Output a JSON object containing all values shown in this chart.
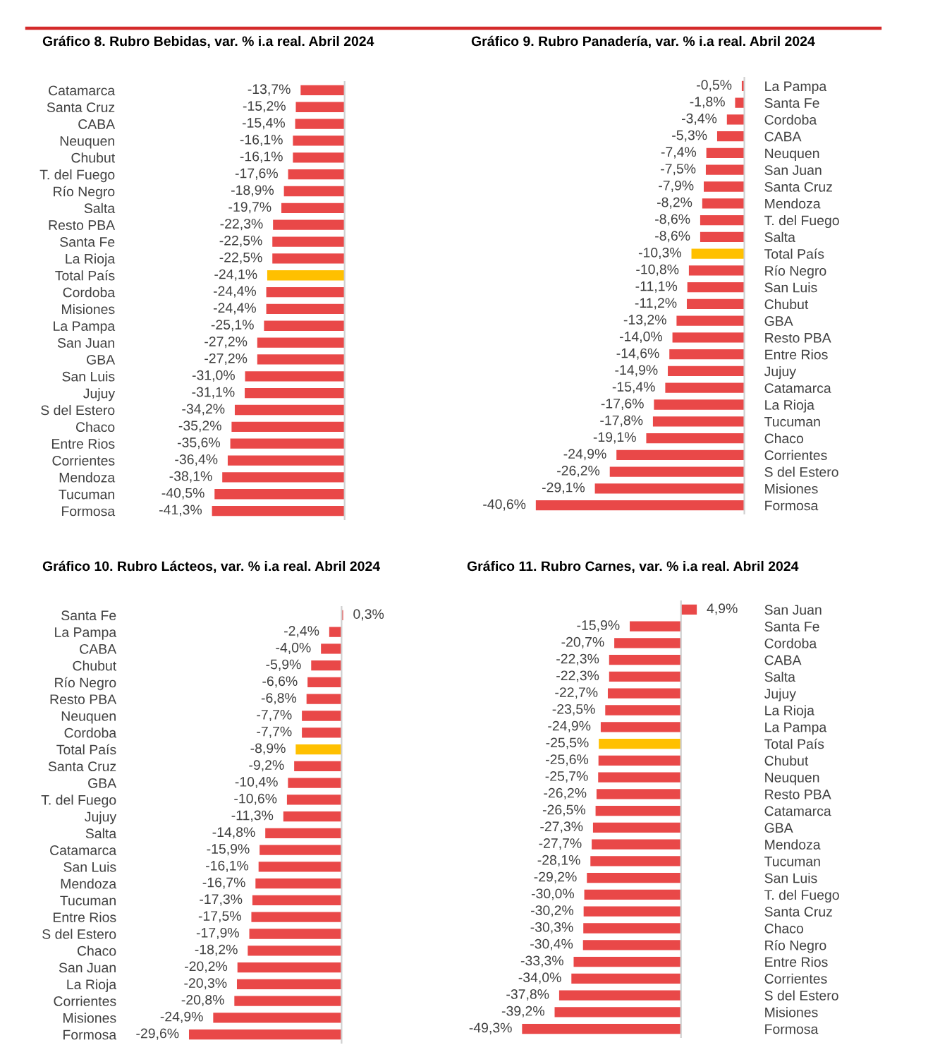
{
  "chart_data": [
    {
      "type": "bar",
      "orientation": "horizontal",
      "tick_labels": "y",
      "title": "Gráfico 8. Rubro Bebidas, var. % i.a real. Abril 2024",
      "categories": [
        "Catamarca",
        "Santa Cruz",
        "CABA",
        "Neuquen",
        "Chubut",
        "T. del Fuego",
        "Río Negro",
        "Salta",
        "Resto PBA",
        "Santa Fe",
        "La Rioja",
        "Total País",
        "Cordoba",
        "Misiones",
        "La Pampa",
        "San Juan",
        "GBA",
        "San Luis",
        "Jujuy",
        "S del Estero",
        "Chaco",
        "Entre Rios",
        "Corrientes",
        "Mendoza",
        "Tucuman",
        "Formosa"
      ],
      "values": [
        -13.7,
        -15.2,
        -15.4,
        -16.1,
        -16.1,
        -17.6,
        -18.9,
        -19.7,
        -22.3,
        -22.5,
        -22.5,
        -24.1,
        -24.4,
        -24.4,
        -25.1,
        -27.2,
        -27.2,
        -31.0,
        -31.1,
        -34.2,
        -35.2,
        -35.6,
        -36.4,
        -38.1,
        -40.5,
        -41.3
      ],
      "value_labels": [
        "-13,7%",
        "-15,2%",
        "-15,4%",
        "-16,1%",
        "-16,1%",
        "-17,6%",
        "-18,9%",
        "-19,7%",
        "-22,3%",
        "-22,5%",
        "-22,5%",
        "-24,1%",
        "-24,4%",
        "-24,4%",
        "-25,1%",
        "-27,2%",
        "-27,2%",
        "-31,0%",
        "-31,1%",
        "-34,2%",
        "-35,2%",
        "-35,6%",
        "-36,4%",
        "-38,1%",
        "-40,5%",
        "-41,3%"
      ],
      "colors": [
        "#e94848",
        "#e94848",
        "#e94848",
        "#e94848",
        "#e94848",
        "#e94848",
        "#e94848",
        "#e94848",
        "#e94848",
        "#e94848",
        "#e94848",
        "#ffc000",
        "#e94848",
        "#e94848",
        "#e94848",
        "#e94848",
        "#e94848",
        "#e94848",
        "#e94848",
        "#e94848",
        "#e94848",
        "#e94848",
        "#e94848",
        "#e94848",
        "#e94848",
        "#e94848"
      ]
    },
    {
      "type": "bar",
      "orientation": "horizontal",
      "tick_labels": "y",
      "title": "Gráfico 9. Rubro Panadería, var. % i.a real. Abril 2024",
      "categories": [
        "La Pampa",
        "Santa Fe",
        "Cordoba",
        "CABA",
        "Neuquen",
        "San Juan",
        "Santa Cruz",
        "Mendoza",
        "T. del Fuego",
        "Salta",
        "Total País",
        "Río Negro",
        "San Luis",
        "Chubut",
        "GBA",
        "Resto PBA",
        "Entre Rios",
        "Jujuy",
        "Catamarca",
        "La Rioja",
        "Tucuman",
        "Chaco",
        "Corrientes",
        "S del Estero",
        "Misiones",
        "Formosa"
      ],
      "values": [
        -0.5,
        -1.8,
        -3.4,
        -5.3,
        -7.4,
        -7.5,
        -7.9,
        -8.2,
        -8.6,
        -8.6,
        -10.3,
        -10.8,
        -11.1,
        -11.2,
        -13.2,
        -14.0,
        -14.6,
        -14.9,
        -15.4,
        -17.6,
        -17.8,
        -19.1,
        -24.9,
        -26.2,
        -29.1,
        -40.6
      ],
      "value_labels": [
        "-0,5%",
        "-1,8%",
        "-3,4%",
        "-5,3%",
        "-7,4%",
        "-7,5%",
        "-7,9%",
        "-8,2%",
        "-8,6%",
        "-8,6%",
        "-10,3%",
        "-10,8%",
        "-11,1%",
        "-11,2%",
        "-13,2%",
        "-14,0%",
        "-14,6%",
        "-14,9%",
        "-15,4%",
        "-17,6%",
        "-17,8%",
        "-19,1%",
        "-24,9%",
        "-26,2%",
        "-29,1%",
        "-40,6%"
      ],
      "colors": [
        "#e94848",
        "#e94848",
        "#e94848",
        "#e94848",
        "#e94848",
        "#e94848",
        "#e94848",
        "#e94848",
        "#e94848",
        "#e94848",
        "#ffc000",
        "#e94848",
        "#e94848",
        "#e94848",
        "#e94848",
        "#e94848",
        "#e94848",
        "#e94848",
        "#e94848",
        "#e94848",
        "#e94848",
        "#e94848",
        "#e94848",
        "#e94848",
        "#e94848",
        "#e94848"
      ]
    },
    {
      "type": "bar",
      "orientation": "horizontal",
      "tick_labels": "y",
      "title": "Gráfico 10. Rubro Lácteos, var. % i.a real. Abril 2024",
      "categories": [
        "Santa Fe",
        "La Pampa",
        "CABA",
        "Chubut",
        "Río Negro",
        "Resto PBA",
        "Neuquen",
        "Cordoba",
        "Total País",
        "Santa Cruz",
        "GBA",
        "T. del Fuego",
        "Jujuy",
        "Salta",
        "Catamarca",
        "San Luis",
        "Mendoza",
        "Tucuman",
        "Entre Rios",
        "S del Estero",
        "Chaco",
        "San Juan",
        "La Rioja",
        "Corrientes",
        "Misiones",
        "Formosa"
      ],
      "values": [
        0.3,
        -2.4,
        -4.0,
        -5.9,
        -6.6,
        -6.8,
        -7.7,
        -7.7,
        -8.9,
        -9.2,
        -10.4,
        -10.6,
        -11.3,
        -14.8,
        -15.9,
        -16.1,
        -16.7,
        -17.3,
        -17.5,
        -17.9,
        -18.2,
        -20.2,
        -20.3,
        -20.8,
        -24.9,
        -29.6
      ],
      "value_labels": [
        "0,3%",
        "-2,4%",
        "-4,0%",
        "-5,9%",
        "-6,6%",
        "-6,8%",
        "-7,7%",
        "-7,7%",
        "-8,9%",
        "-9,2%",
        "-10,4%",
        "-10,6%",
        "-11,3%",
        "-14,8%",
        "-15,9%",
        "-16,1%",
        "-16,7%",
        "-17,3%",
        "-17,5%",
        "-17,9%",
        "-18,2%",
        "-20,2%",
        "-20,3%",
        "-20,8%",
        "-24,9%",
        "-29,6%"
      ],
      "colors": [
        "#e94848",
        "#e94848",
        "#e94848",
        "#e94848",
        "#e94848",
        "#e94848",
        "#e94848",
        "#e94848",
        "#ffc000",
        "#e94848",
        "#e94848",
        "#e94848",
        "#e94848",
        "#e94848",
        "#e94848",
        "#e94848",
        "#e94848",
        "#e94848",
        "#e94848",
        "#e94848",
        "#e94848",
        "#e94848",
        "#e94848",
        "#e94848",
        "#e94848",
        "#e94848"
      ]
    },
    {
      "type": "bar",
      "orientation": "horizontal",
      "tick_labels": "y",
      "title": "Gráfico 11. Rubro Carnes, var. % i.a real. Abril 2024",
      "categories": [
        "San Juan",
        "Santa Fe",
        "Cordoba",
        "CABA",
        "Salta",
        "Jujuy",
        "La Rioja",
        "La Pampa",
        "Total País",
        "Chubut",
        "Neuquen",
        "Resto PBA",
        "Catamarca",
        "GBA",
        "Mendoza",
        "Tucuman",
        "San Luis",
        "T. del Fuego",
        "Santa Cruz",
        "Chaco",
        "Río Negro",
        "Entre Rios",
        "Corrientes",
        "S del Estero",
        "Misiones",
        "Formosa"
      ],
      "values": [
        4.9,
        -15.9,
        -20.7,
        -22.3,
        -22.3,
        -22.7,
        -23.5,
        -24.9,
        -25.5,
        -25.6,
        -25.7,
        -26.2,
        -26.5,
        -27.3,
        -27.7,
        -28.1,
        -29.2,
        -30.0,
        -30.2,
        -30.3,
        -30.4,
        -33.3,
        -34.0,
        -37.8,
        -39.2,
        -49.3
      ],
      "value_labels": [
        "4,9%",
        "-15,9%",
        "-20,7%",
        "-22,3%",
        "-22,3%",
        "-22,7%",
        "-23,5%",
        "-24,9%",
        "-25,5%",
        "-25,6%",
        "-25,7%",
        "-26,2%",
        "-26,5%",
        "-27,3%",
        "-27,7%",
        "-28,1%",
        "-29,2%",
        "-30,0%",
        "-30,2%",
        "-30,3%",
        "-30,4%",
        "-33,3%",
        "-34,0%",
        "-37,8%",
        "-39,2%",
        "-49,3%"
      ],
      "colors": [
        "#e94848",
        "#e94848",
        "#e94848",
        "#e94848",
        "#e94848",
        "#e94848",
        "#e94848",
        "#e94848",
        "#ffc000",
        "#e94848",
        "#e94848",
        "#e94848",
        "#e94848",
        "#e94848",
        "#e94848",
        "#e94848",
        "#e94848",
        "#e94848",
        "#e94848",
        "#e94848",
        "#e94848",
        "#e94848",
        "#e94848",
        "#e94848",
        "#e94848",
        "#e94848"
      ]
    }
  ]
}
